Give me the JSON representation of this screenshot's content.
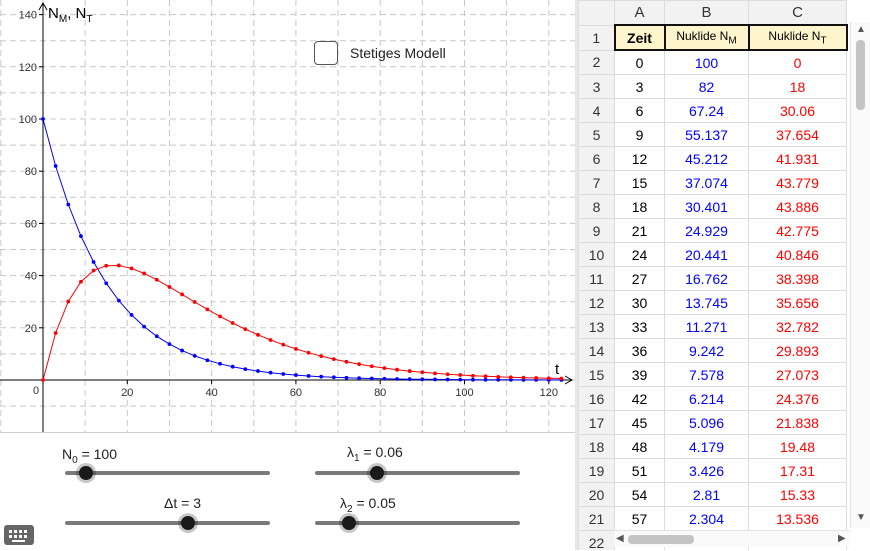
{
  "graph": {
    "x_ticks": [
      "20",
      "40",
      "60",
      "80",
      "100",
      "120"
    ],
    "y_ticks": [
      "20",
      "40",
      "60",
      "80",
      "100",
      "120",
      "140"
    ],
    "y_axis_label": "N",
    "y_axis_label_sub1": "M",
    "y_axis_label_mid": ", N",
    "y_axis_label_sub2": "T",
    "x_axis_label": "t",
    "origin_label": "0",
    "checkbox_label": "Stetiges Modell",
    "colors": {
      "NM": "#0000ff",
      "NT": "#ff0000"
    }
  },
  "chart_data": {
    "type": "line",
    "xlabel": "t",
    "ylabel": "NM, NT",
    "xlim": [
      -10,
      125
    ],
    "ylim": [
      -5,
      140
    ],
    "grid": true,
    "series": [
      {
        "name": "NM",
        "color": "#0000ff",
        "x": [
          0,
          3,
          6,
          9,
          12,
          15,
          18,
          21,
          24,
          27,
          30,
          33,
          36,
          39,
          42,
          45,
          48,
          51,
          54,
          57,
          60,
          63,
          66,
          69,
          72,
          75,
          78,
          81,
          84,
          87,
          90,
          93,
          96,
          99,
          102,
          105,
          108,
          111,
          114,
          117,
          120,
          123
        ],
        "values": [
          100,
          82,
          67.24,
          55.137,
          45.212,
          37.074,
          30.401,
          24.929,
          20.441,
          16.762,
          13.745,
          11.271,
          9.242,
          7.578,
          6.214,
          5.096,
          4.179,
          3.426,
          2.81,
          2.304,
          1.889,
          1.549,
          1.27,
          1.042,
          0.854,
          0.7,
          0.574,
          0.471,
          0.386,
          0.317,
          0.26,
          0.213,
          0.175,
          0.143,
          0.117,
          0.096,
          0.079,
          0.065,
          0.053,
          0.044,
          0.036,
          0.029
        ]
      },
      {
        "name": "NT",
        "color": "#ff0000",
        "x": [
          0,
          3,
          6,
          9,
          12,
          15,
          18,
          21,
          24,
          27,
          30,
          33,
          36,
          39,
          42,
          45,
          48,
          51,
          54,
          57,
          60,
          63,
          66,
          69,
          72,
          75,
          78,
          81,
          84,
          87,
          90,
          93,
          96,
          99,
          102,
          105,
          108,
          111,
          114,
          117,
          120,
          123
        ],
        "values": [
          0,
          18,
          30.06,
          37.654,
          41.931,
          43.779,
          43.886,
          42.775,
          40.846,
          38.398,
          35.656,
          32.782,
          29.893,
          27.073,
          24.376,
          21.838,
          19.48,
          17.31,
          15.33,
          13.536,
          11.91,
          10.45,
          9.15,
          8.0,
          6.97,
          6.06,
          5.26,
          4.56,
          3.95,
          3.42,
          2.95,
          2.55,
          2.2,
          1.9,
          1.63,
          1.41,
          1.21,
          1.04,
          0.9,
          0.77,
          0.66,
          0.57
        ]
      }
    ]
  },
  "sliders": {
    "n0": {
      "label_main": "N",
      "label_sub": "0",
      "label_val": " = 100",
      "value": 100,
      "min": 0,
      "max": 1000
    },
    "lambda1": {
      "label_main": "λ",
      "label_sub": "1",
      "label_val": " = 0.06",
      "value": 0.06,
      "min": 0,
      "max": 0.2
    },
    "dt": {
      "label_main": "Δt = 3",
      "value": 3,
      "min": 0,
      "max": 5
    },
    "lambda2": {
      "label_main": "λ",
      "label_sub": "2",
      "label_val": " = 0.05",
      "value": 0.05,
      "min": 0,
      "max": 0.3
    }
  },
  "spreadsheet": {
    "columns": [
      "A",
      "B",
      "C"
    ],
    "header_row": {
      "row": "1",
      "a": "Zeit",
      "b_main": "Nuklide N",
      "b_sub": "M",
      "c_main": "Nuklide N",
      "c_sub": "T"
    },
    "rows": [
      {
        "r": "2",
        "a": "0",
        "b": "100",
        "c": "0"
      },
      {
        "r": "3",
        "a": "3",
        "b": "82",
        "c": "18"
      },
      {
        "r": "4",
        "a": "6",
        "b": "67.24",
        "c": "30.06"
      },
      {
        "r": "5",
        "a": "9",
        "b": "55.137",
        "c": "37.654"
      },
      {
        "r": "6",
        "a": "12",
        "b": "45.212",
        "c": "41.931"
      },
      {
        "r": "7",
        "a": "15",
        "b": "37.074",
        "c": "43.779"
      },
      {
        "r": "8",
        "a": "18",
        "b": "30.401",
        "c": "43.886"
      },
      {
        "r": "9",
        "a": "21",
        "b": "24.929",
        "c": "42.775"
      },
      {
        "r": "10",
        "a": "24",
        "b": "20.441",
        "c": "40.846"
      },
      {
        "r": "11",
        "a": "27",
        "b": "16.762",
        "c": "38.398"
      },
      {
        "r": "12",
        "a": "30",
        "b": "13.745",
        "c": "35.656"
      },
      {
        "r": "13",
        "a": "33",
        "b": "11.271",
        "c": "32.782"
      },
      {
        "r": "14",
        "a": "36",
        "b": "9.242",
        "c": "29.893"
      },
      {
        "r": "15",
        "a": "39",
        "b": "7.578",
        "c": "27.073"
      },
      {
        "r": "16",
        "a": "42",
        "b": "6.214",
        "c": "24.376"
      },
      {
        "r": "17",
        "a": "45",
        "b": "5.096",
        "c": "21.838"
      },
      {
        "r": "18",
        "a": "48",
        "b": "4.179",
        "c": "19.48"
      },
      {
        "r": "19",
        "a": "51",
        "b": "3.426",
        "c": "17.31"
      },
      {
        "r": "20",
        "a": "54",
        "b": "2.81",
        "c": "15.33"
      },
      {
        "r": "21",
        "a": "57",
        "b": "2.304",
        "c": "13.536"
      },
      {
        "r": "22",
        "a": "",
        "b": "",
        "c": ""
      }
    ]
  },
  "icons": {
    "keyboard": "keyboard-icon",
    "scroll_up": "▲",
    "scroll_down": "▼",
    "scroll_left": "◀",
    "scroll_right": "▶"
  }
}
